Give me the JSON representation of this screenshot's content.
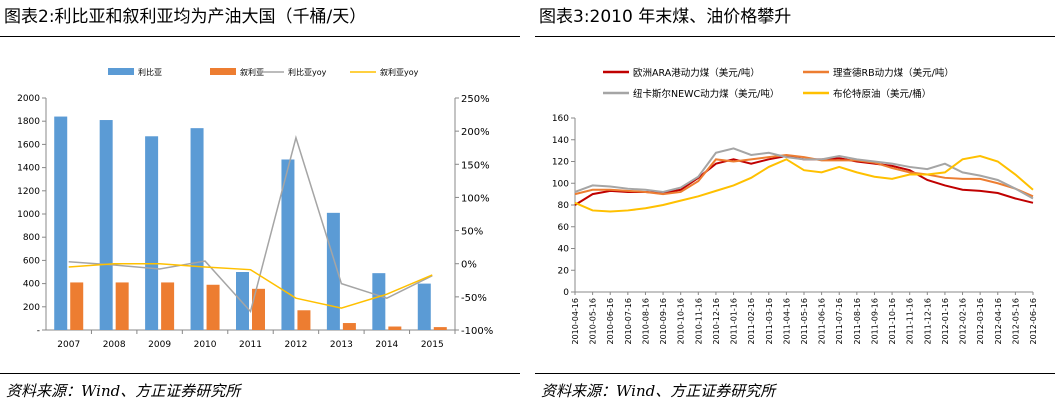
{
  "left": {
    "title": "图表2:利比亚和叙利亚均为产油大国（千桶/天）",
    "source": "资料来源：Wind、方正证券研究所"
  },
  "right": {
    "title": "图表3:2010 年末煤、油价格攀升",
    "source": "资料来源：Wind、方正证券研究所"
  },
  "chart_data": [
    {
      "type": "bar",
      "categories": [
        "2007",
        "2008",
        "2009",
        "2010",
        "2011",
        "2012",
        "2013",
        "2014",
        "2015"
      ],
      "series": [
        {
          "name": "利比亚",
          "kind": "bar",
          "axis": "left",
          "color": "#5b9bd5",
          "values": [
            1840,
            1810,
            1670,
            1740,
            500,
            1470,
            1010,
            490,
            400
          ]
        },
        {
          "name": "叙利亚",
          "kind": "bar",
          "axis": "left",
          "color": "#ed7d31",
          "values": [
            410,
            410,
            410,
            390,
            355,
            170,
            60,
            30,
            25
          ]
        },
        {
          "name": "利比亚yoy",
          "kind": "line",
          "axis": "right",
          "color": "#a5a5a5",
          "values": [
            3,
            -2,
            -8,
            4,
            -72,
            190,
            -30,
            -52,
            -18
          ]
        },
        {
          "name": "叙利亚yoy",
          "kind": "line",
          "axis": "right",
          "color": "#ffc000",
          "values": [
            -5,
            0,
            0,
            -5,
            -9,
            -52,
            -67,
            -46,
            -17
          ]
        }
      ],
      "left_yticks": [
        "2000",
        "1800",
        "1600",
        "1400",
        "1200",
        "1000",
        "800",
        "600",
        "400",
        "200",
        "-"
      ],
      "ylim": [
        0,
        2000
      ],
      "right_yticks": [
        "250%",
        "200%",
        "150%",
        "100%",
        "50%",
        "0%",
        "-50%",
        "-100%"
      ],
      "y2lim": [
        -100,
        250
      ]
    },
    {
      "type": "line",
      "x": [
        "2010-04-16",
        "2010-05-16",
        "2010-06-16",
        "2010-07-16",
        "2010-08-16",
        "2010-09-16",
        "2010-10-16",
        "2010-11-16",
        "2010-12-16",
        "2011-01-16",
        "2011-02-16",
        "2011-03-16",
        "2011-04-16",
        "2011-05-16",
        "2011-06-16",
        "2011-07-16",
        "2011-08-16",
        "2011-09-16",
        "2011-10-16",
        "2011-11-16",
        "2011-12-16",
        "2012-01-16",
        "2012-02-16",
        "2012-03-16",
        "2012-04-16",
        "2012-05-16",
        "2012-06-16"
      ],
      "series": [
        {
          "name": "欧洲ARA港动力煤（美元/吨）",
          "color": "#c00000",
          "values": [
            80,
            90,
            93,
            92,
            92,
            91,
            94,
            105,
            118,
            122,
            118,
            122,
            125,
            122,
            122,
            123,
            120,
            118,
            116,
            112,
            103,
            98,
            94,
            93,
            91,
            86,
            82
          ]
        },
        {
          "name": "理查德RB动力煤（美元/吨）",
          "color": "#ed7d31",
          "values": [
            90,
            94,
            94,
            93,
            92,
            90,
            92,
            102,
            122,
            120,
            122,
            124,
            126,
            124,
            121,
            121,
            121,
            119,
            114,
            110,
            108,
            105,
            104,
            104,
            100,
            95,
            88
          ]
        },
        {
          "name": "纽卡斯尔NEWC动力煤（美元/吨）",
          "color": "#a5a5a5",
          "values": [
            92,
            98,
            97,
            95,
            94,
            92,
            96,
            106,
            128,
            132,
            126,
            128,
            124,
            122,
            122,
            125,
            122,
            120,
            118,
            115,
            113,
            118,
            110,
            107,
            103,
            95,
            86
          ]
        },
        {
          "name": "布伦特原油（美元/桶）",
          "color": "#ffc000",
          "values": [
            82,
            75,
            74,
            75,
            77,
            80,
            84,
            88,
            93,
            98,
            105,
            115,
            122,
            112,
            110,
            115,
            110,
            106,
            104,
            108,
            108,
            110,
            122,
            125,
            120,
            108,
            94
          ]
        }
      ],
      "yticks": [
        "160",
        "140",
        "120",
        "100",
        "80",
        "60",
        "40",
        "20",
        "0"
      ],
      "ylim": [
        0,
        160
      ]
    }
  ]
}
